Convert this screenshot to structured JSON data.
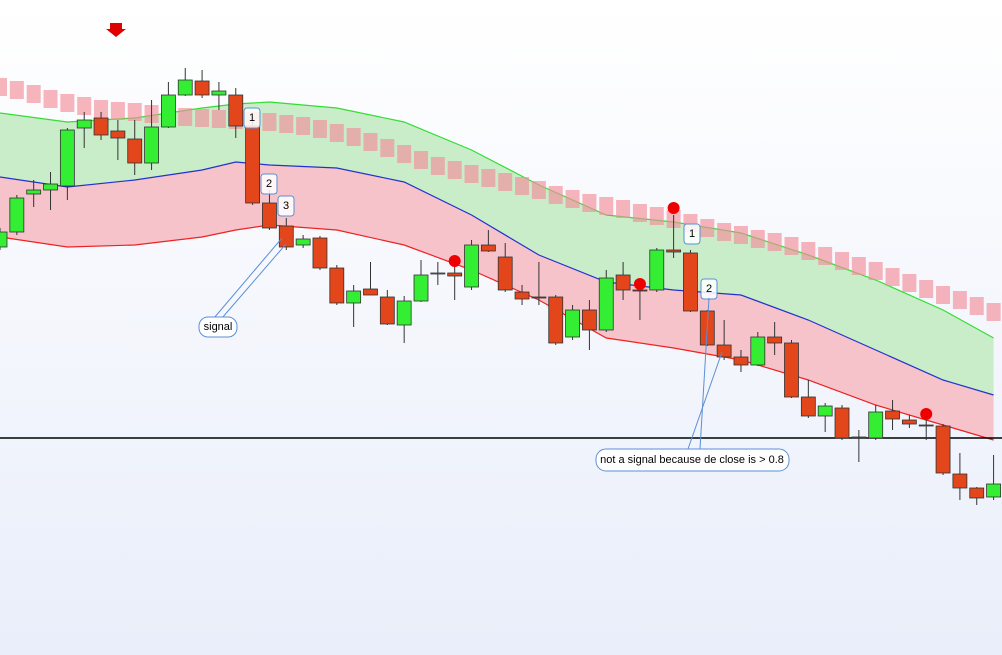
{
  "chart_data": {
    "type": "candlestick",
    "xlim": [
      0,
      59.5
    ],
    "ylim": [
      0,
      655
    ],
    "candles": {
      "open": [
        408,
        423,
        461,
        465,
        469,
        527,
        537,
        524,
        516,
        492,
        528,
        560,
        574,
        560,
        560,
        529,
        452,
        429,
        410,
        417,
        387,
        352,
        366,
        358,
        330,
        354,
        381,
        382,
        368,
        410,
        398,
        363,
        358,
        358,
        318,
        345,
        325,
        380,
        365,
        365,
        405,
        402,
        344,
        310,
        298,
        290,
        318,
        312,
        258,
        239,
        247,
        218,
        217,
        244,
        235,
        230,
        229,
        181,
        167,
        158
      ],
      "close": [
        423,
        457,
        465,
        471,
        525,
        535,
        520,
        517,
        492,
        528,
        560,
        575,
        560,
        564,
        529,
        452,
        427,
        408,
        416,
        387,
        352,
        364,
        360,
        331,
        354,
        380,
        382,
        379,
        410,
        404,
        365,
        356,
        357,
        312,
        345,
        325,
        377,
        365,
        364,
        405,
        403,
        344,
        310,
        298,
        290,
        318,
        312,
        258,
        239,
        249,
        217,
        217,
        243,
        236,
        231,
        229,
        182,
        167,
        157,
        171
      ],
      "high": [
        427,
        460,
        475,
        483,
        527,
        543,
        543,
        535,
        535,
        555,
        573,
        587,
        585,
        573,
        567,
        535,
        465,
        437,
        420,
        419,
        390,
        370,
        393,
        365,
        359,
        395,
        393,
        395,
        415,
        425,
        412,
        370,
        393,
        360,
        350,
        355,
        385,
        393,
        373,
        407,
        440,
        405,
        345,
        335,
        305,
        323,
        333,
        315,
        275,
        252,
        250,
        225,
        250,
        255,
        240,
        235,
        231,
        202,
        168,
        200
      ],
      "low": [
        405,
        420,
        448,
        445,
        455,
        507,
        515,
        495,
        480,
        485,
        527,
        559,
        557,
        545,
        517,
        450,
        425,
        405,
        407,
        385,
        350,
        328,
        360,
        330,
        312,
        353,
        370,
        355,
        365,
        403,
        363,
        350,
        350,
        310,
        315,
        305,
        323,
        355,
        335,
        363,
        397,
        343,
        309,
        295,
        283,
        289,
        300,
        257,
        237,
        223,
        215,
        193,
        215,
        225,
        227,
        215,
        180,
        155,
        150,
        155
      ],
      "up_color": "#33ee33",
      "down_color": "#e2461a"
    },
    "bands": {
      "x": [
        0,
        4,
        8,
        12,
        14,
        16,
        20,
        24,
        28,
        32,
        36,
        40,
        44,
        48,
        52,
        56,
        59
      ],
      "series": [
        {
          "color": "#33dd33",
          "values": [
            542,
            533,
            537,
            547,
            551,
            553,
            547,
            533,
            505,
            470,
            440,
            433,
            422,
            400,
            375,
            345,
            317
          ]
        },
        {
          "color": "#2233cc",
          "values": [
            478,
            468,
            475,
            485,
            493,
            490,
            487,
            473,
            440,
            400,
            373,
            365,
            360,
            335,
            305,
            275,
            260
          ]
        },
        {
          "color": "#ee2222",
          "values": [
            418,
            408,
            410,
            418,
            425,
            430,
            425,
            410,
            385,
            355,
            317,
            307,
            295,
            275,
            250,
            230,
            215
          ]
        }
      ],
      "fill_colors": [
        "#c9edc9",
        "#f6c3ca"
      ]
    },
    "cloud": {
      "color": "#f28e9a",
      "values": [
        577,
        574,
        570,
        565,
        561,
        558,
        555,
        553,
        552,
        550,
        548,
        547,
        546,
        545,
        544,
        543,
        542,
        540,
        538,
        535,
        531,
        527,
        522,
        516,
        510,
        504,
        498,
        494,
        490,
        486,
        482,
        478,
        474,
        469,
        465,
        461,
        458,
        455,
        451,
        448,
        445,
        441,
        436,
        432,
        429,
        425,
        422,
        418,
        413,
        408,
        403,
        398,
        393,
        387,
        381,
        375,
        369,
        364,
        358,
        352
      ]
    },
    "signals": {
      "color": "#ee0000",
      "x": [
        27,
        38,
        40,
        55
      ],
      "values": [
        394,
        371,
        447,
        241
      ]
    },
    "hline": 217,
    "labels": [
      "1",
      "2",
      "3",
      "1",
      "2"
    ],
    "annotations": [
      "signal",
      "not a signal because de close is > 0.8"
    ]
  }
}
